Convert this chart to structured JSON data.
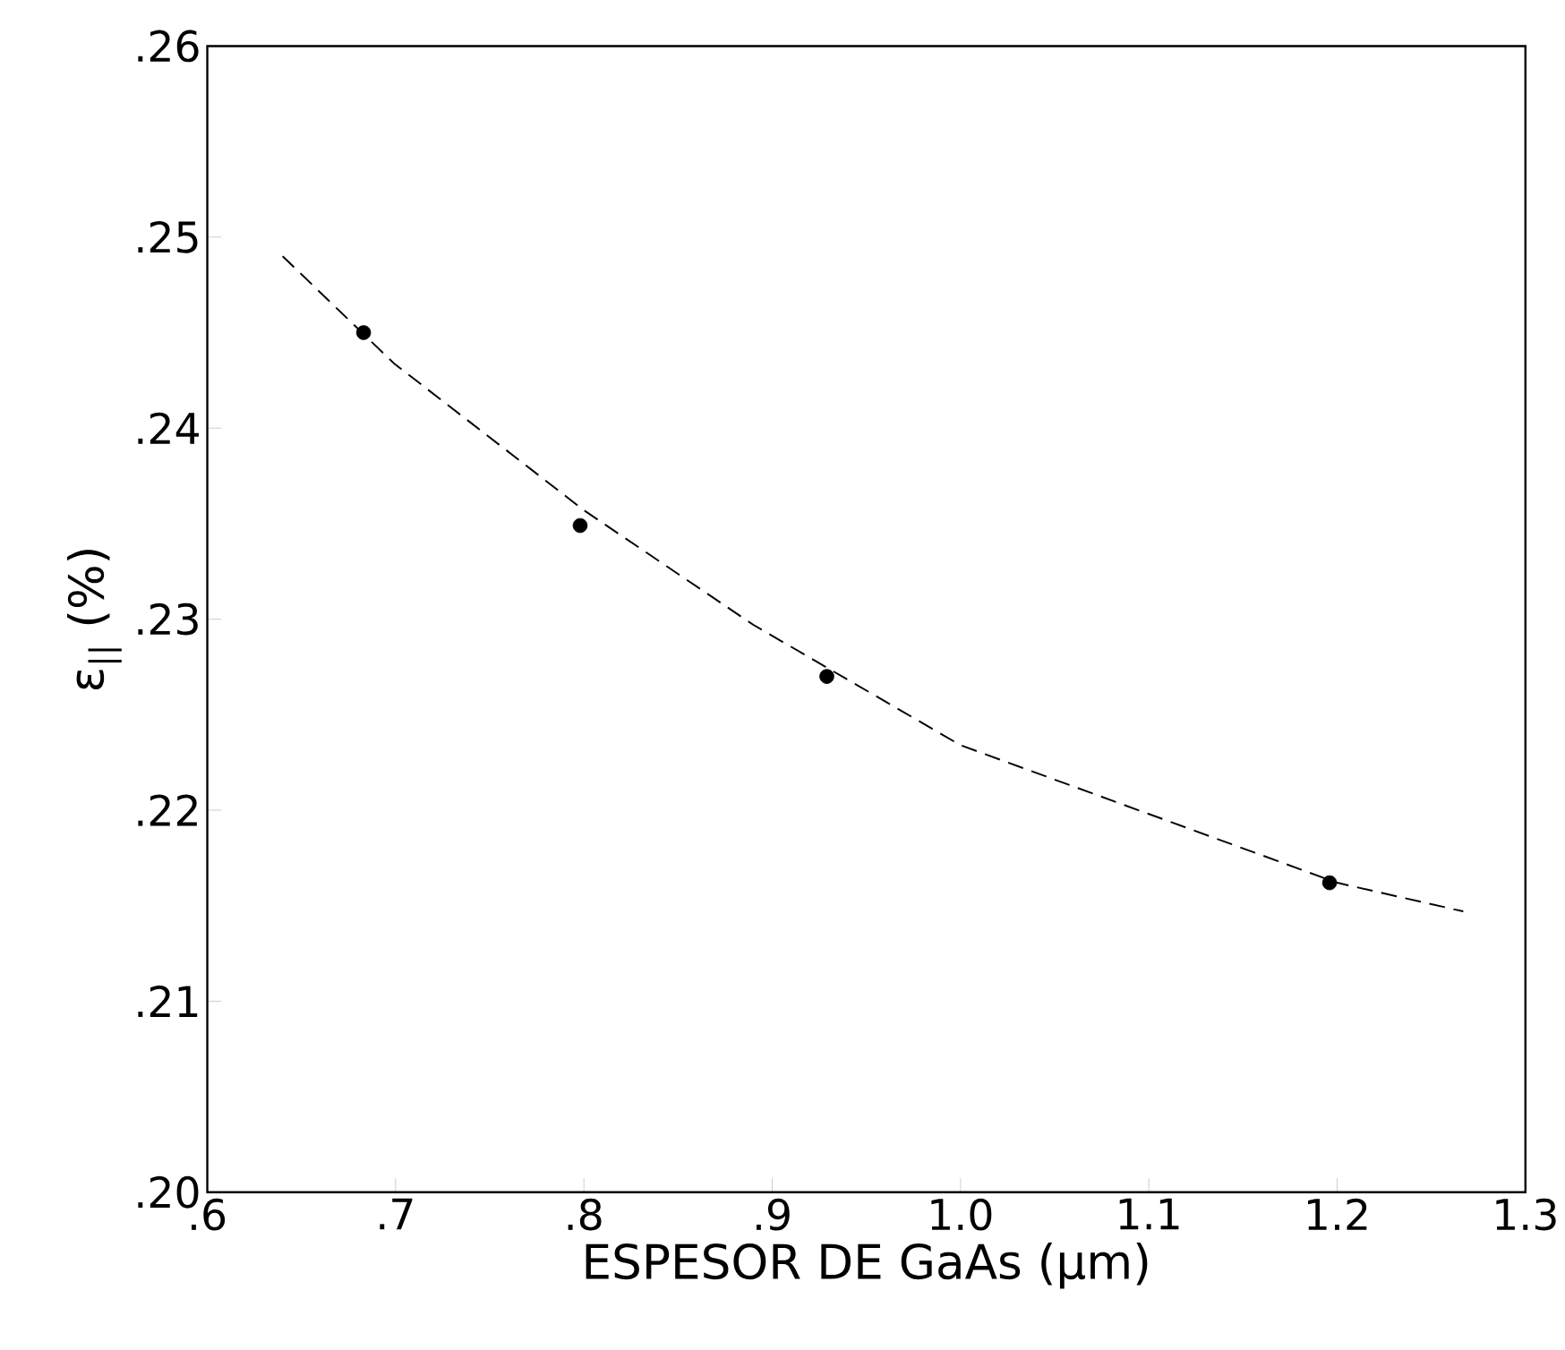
{
  "chart_data": {
    "type": "scatter",
    "xlabel": "ESPESOR DE GaAs (μm)",
    "ylabel": "ε$_{||}$ (%)",
    "xlim": [
      0.6,
      1.3
    ],
    "ylim": [
      0.2,
      0.26
    ],
    "xticks": [
      {
        "value": 0.6,
        "label": ".6"
      },
      {
        "value": 0.7,
        "label": ".7"
      },
      {
        "value": 0.8,
        "label": ".8"
      },
      {
        "value": 0.9,
        "label": ".9"
      },
      {
        "value": 1.0,
        "label": "1.0"
      },
      1.1,
      1.2,
      1.3
    ],
    "yticks": [
      {
        "value": 0.2,
        "label": ".20"
      },
      {
        "value": 0.21,
        "label": ".21"
      },
      {
        "value": 0.22,
        "label": ".22"
      },
      {
        "value": 0.23,
        "label": ".23"
      },
      {
        "value": 0.24,
        "label": ".24"
      },
      {
        "value": 0.25,
        "label": ".25"
      },
      {
        "value": 0.26,
        "label": ".26"
      }
    ],
    "series": [
      {
        "color": "#000000",
        "marker": "circle",
        "x": [
          0.683,
          0.798,
          0.929,
          1.196
        ],
        "values": [
          0.245,
          0.2349,
          0.227,
          0.2162
        ]
      },
      {
        "type": "line",
        "color": "#000000",
        "line_style": "dashed",
        "marker": "none",
        "x": [
          0.64,
          0.699,
          0.8,
          0.89,
          1.0,
          1.1,
          1.2,
          1.267
        ],
        "values": [
          0.249,
          0.2434,
          0.2357,
          0.2297,
          0.2234,
          0.2198,
          0.2162,
          0.2147
        ]
      }
    ]
  }
}
